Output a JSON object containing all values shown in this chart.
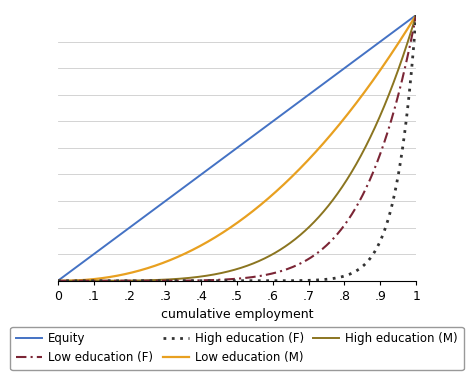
{
  "title": "",
  "xlabel": "cumulative employment",
  "ylabel": "",
  "xlim": [
    0,
    1
  ],
  "ylim": [
    0,
    1
  ],
  "xticks": [
    0,
    0.1,
    0.2,
    0.3,
    0.4,
    0.5,
    0.6,
    0.7,
    0.8,
    0.9,
    1.0
  ],
  "xticklabels": [
    "0",
    ".1",
    ".2",
    ".3",
    ".4",
    ".5",
    ".6",
    ".7",
    ".8",
    ".9",
    "1"
  ],
  "lines": {
    "equity": {
      "label": "Equity",
      "color": "#4472C4",
      "linestyle": "solid",
      "linewidth": 1.4,
      "k": 1.0
    },
    "low_edu_m": {
      "label": "Low education (M)",
      "color": "#E8A020",
      "linestyle": "solid",
      "linewidth": 1.6,
      "k": 2.2
    },
    "high_edu_m": {
      "label": "High education (M)",
      "color": "#8B7520",
      "linestyle": "solid",
      "linewidth": 1.4,
      "k": 4.5
    },
    "low_edu_f": {
      "label": "Low education (F)",
      "color": "#7B2535",
      "linestyle": "dashdot",
      "linewidth": 1.5,
      "k": 7.0
    },
    "high_edu_f": {
      "label": "High education (F)",
      "color": "#333333",
      "linestyle": "dotted",
      "linewidth": 2.0,
      "k": 18.0
    }
  },
  "background_color": "#FFFFFF",
  "grid_color": "#CCCCCC",
  "legend_fontsize": 8.5,
  "axis_fontsize": 9,
  "n_gridlines": 10
}
